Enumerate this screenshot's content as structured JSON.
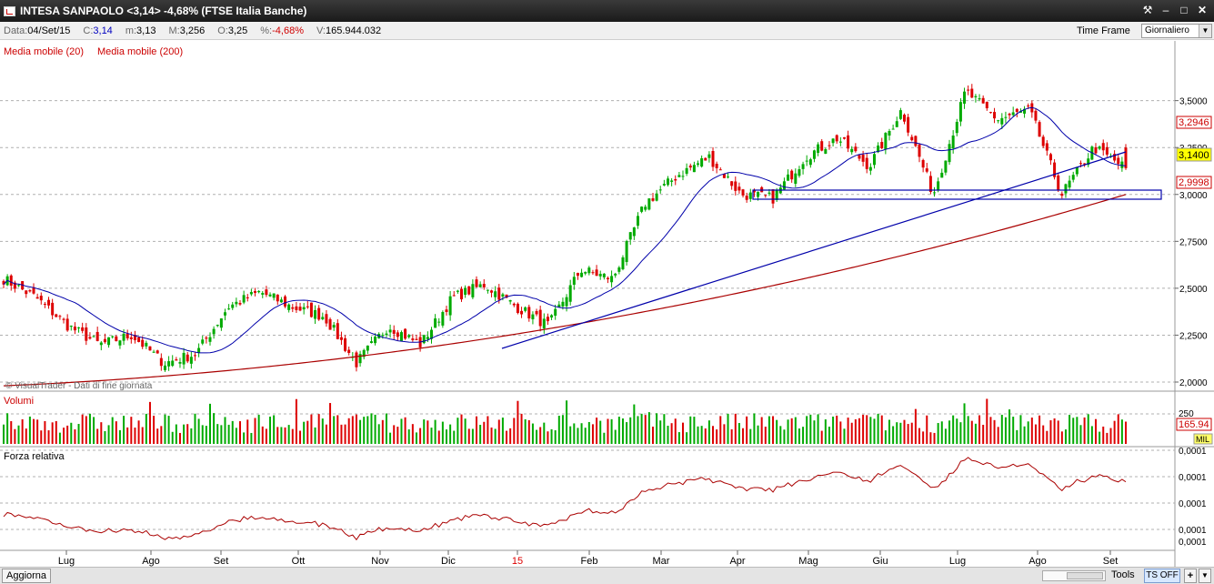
{
  "window": {
    "title": "INTESA SANPAOLO <3,14> -4,68%  (FTSE Italia Banche)",
    "controls": [
      "tool-icon",
      "minimize-icon",
      "maximize-icon",
      "close-icon"
    ]
  },
  "infobar": {
    "data_label": "Data:",
    "data_value": "04/Set/15",
    "c_label": "C:",
    "c_value": "3,14",
    "m_label": "m:",
    "m_value": "3,13",
    "M_label": "M:",
    "M_value": "3,256",
    "o_label": "O:",
    "o_value": "3,25",
    "pct_label": "%:",
    "pct_value": "-4,68%",
    "v_label": "V:",
    "v_value": "165.944.032",
    "timeframe_label": "Time Frame",
    "timeframe_value": "Giornaliero"
  },
  "legend": {
    "ma20": "Media mobile (20)",
    "ma200": "Media mobile (200)",
    "watermark": "© VisualTrader - Dati di fine giornata",
    "volumi": "Volumi",
    "forza": "Forza relativa"
  },
  "price_axis": {
    "ticks": [
      "3,5000",
      "3,2500",
      "3,0000",
      "2,7500",
      "2,5000",
      "2,2500",
      "2,0000"
    ],
    "tick_values": [
      3.5,
      3.25,
      3.0,
      2.75,
      2.5,
      2.25,
      2.0
    ],
    "ma20_label": "3,2946",
    "last_label": "3,1400",
    "ma200_label": "2,9998"
  },
  "volume_axis": {
    "tick": "250",
    "value_label": "165.94",
    "unit_label": "MIL"
  },
  "rs_axis": {
    "ticks": [
      "0,0001",
      "0,0001",
      "0,0001",
      "0,0001",
      "0,0001"
    ]
  },
  "time_axis": {
    "labels": [
      "Lug",
      "Ago",
      "Set",
      "Ott",
      "Nov",
      "Dic",
      "15",
      "Feb",
      "Mar",
      "Apr",
      "Mag",
      "Giu",
      "Lug",
      "Ago",
      "Set"
    ],
    "year_label": "15"
  },
  "colors": {
    "up": "#00aa00",
    "down": "#dd0000",
    "ma20": "#0000aa",
    "ma200": "#aa0000",
    "rs": "#aa0000",
    "grid": "#b0b0b0",
    "highlight": "#ffff00",
    "label_red": "#dd0000"
  },
  "chart_data": {
    "type": "candlestick",
    "yrange": [
      2.0,
      3.6
    ],
    "last_close": 3.14,
    "ma20_last": 3.2946,
    "ma200_last": 2.9998,
    "waypoints": [
      [
        "Jul",
        2.55
      ],
      [
        "Jul",
        2.45
      ],
      [
        "Jul",
        2.3
      ],
      [
        "Jul",
        2.2
      ],
      [
        "Aug",
        2.25
      ],
      [
        "Aug",
        2.1
      ],
      [
        "Aug",
        2.15
      ],
      [
        "Sep",
        2.4
      ],
      [
        "Sep",
        2.48
      ],
      [
        "Oct",
        2.4
      ],
      [
        "Oct",
        2.35
      ],
      [
        "Oct",
        2.1
      ],
      [
        "Nov",
        2.3
      ],
      [
        "Nov",
        2.2
      ],
      [
        "Dec",
        2.45
      ],
      [
        "Dec",
        2.52
      ],
      [
        "15",
        2.4
      ],
      [
        "15",
        2.3
      ],
      [
        "Feb",
        2.6
      ],
      [
        "Feb",
        2.55
      ],
      [
        "Mar",
        2.95
      ],
      [
        "Mar",
        3.1
      ],
      [
        "Apr",
        3.2
      ],
      [
        "Apr",
        3.0
      ],
      [
        "May",
        2.98
      ],
      [
        "May",
        3.2
      ],
      [
        "Jun",
        3.3
      ],
      [
        "Jun",
        3.15
      ],
      [
        "Jul",
        3.45
      ],
      [
        "Jul",
        3.0
      ],
      [
        "Jul",
        3.55
      ],
      [
        "Aug",
        3.4
      ],
      [
        "Aug",
        3.45
      ],
      [
        "Aug",
        3.0
      ],
      [
        "Sep",
        3.25
      ],
      [
        "Sep",
        3.14
      ]
    ]
  }
}
